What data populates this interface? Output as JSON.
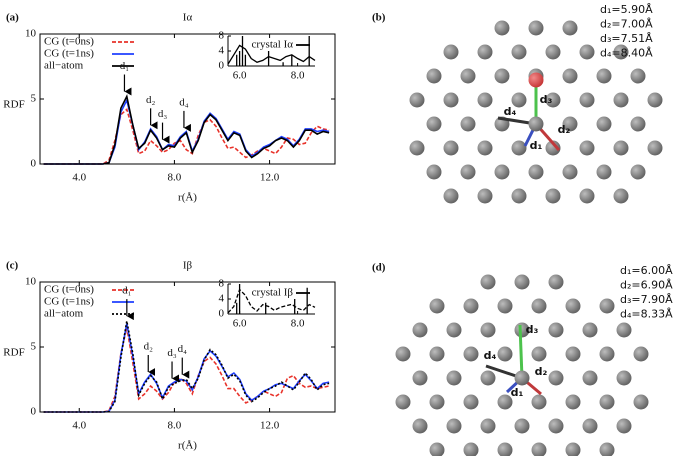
{
  "chart_data": [
    {
      "type": "line",
      "panel": "(a)",
      "title": "Iα",
      "xlabel": "r(Å)",
      "ylabel": "RDF",
      "xlim": [
        2.35,
        14.75
      ],
      "ylim": [
        0,
        10
      ],
      "xticks": [
        {
          "value": 4,
          "label": "4.0"
        },
        {
          "value": 8,
          "label": "8.0"
        },
        {
          "value": 12,
          "label": "12.0"
        }
      ],
      "yticks": [
        0,
        5,
        10
      ],
      "x": [
        2.5,
        2.75,
        3,
        3.25,
        3.5,
        3.75,
        4,
        4.25,
        4.5,
        4.75,
        5,
        5.25,
        5.5,
        5.75,
        6,
        6.25,
        6.5,
        6.75,
        7,
        7.25,
        7.5,
        7.75,
        8,
        8.25,
        8.5,
        8.75,
        9,
        9.25,
        9.5,
        9.75,
        10,
        10.25,
        10.5,
        10.75,
        11,
        11.25,
        11.5,
        11.75,
        12,
        12.25,
        12.5,
        12.75,
        13,
        13.25,
        13.5,
        13.75,
        14,
        14.25,
        14.5
      ],
      "series": [
        {
          "name": "CG (t=0ns)",
          "color": "#e8322a",
          "style": "dashed",
          "values": [
            0,
            0,
            0,
            0,
            0,
            0,
            0,
            0,
            0,
            0,
            0,
            0.3,
            1.8,
            3.8,
            4.2,
            2.6,
            0.8,
            1.0,
            1.8,
            1.4,
            0.9,
            1.1,
            1.6,
            1.8,
            1.1,
            0.8,
            2.2,
            3.2,
            3.4,
            2.9,
            2.0,
            1.2,
            1.3,
            0.9,
            0.5,
            0.7,
            1.0,
            1.2,
            1.0,
            0.8,
            1.3,
            2.0,
            1.9,
            1.5,
            1.6,
            2.4,
            2.9,
            2.7,
            2.6
          ]
        },
        {
          "name": "CG (t=1ns)",
          "color": "#1f3fff",
          "style": "solid",
          "values": [
            0,
            0,
            0,
            0,
            0,
            0,
            0,
            0,
            0,
            0,
            0,
            0.1,
            1.3,
            4.0,
            4.9,
            3.0,
            1.1,
            1.7,
            2.7,
            2.1,
            1.1,
            1.5,
            1.4,
            2.1,
            2.5,
            1.0,
            1.9,
            3.3,
            3.9,
            3.5,
            2.7,
            1.9,
            2.5,
            2.3,
            1.1,
            0.6,
            0.9,
            1.3,
            1.5,
            1.8,
            2.1,
            1.9,
            1.4,
            1.9,
            2.7,
            2.7,
            2.5,
            2.6,
            2.5
          ]
        },
        {
          "name": "all−atom",
          "color": "#000000",
          "style": "solid",
          "values": [
            0,
            0,
            0,
            0,
            0,
            0,
            0,
            0,
            0,
            0,
            0,
            0.1,
            1.5,
            4.3,
            5.2,
            3.0,
            1.2,
            1.6,
            2.6,
            2.0,
            1.1,
            1.4,
            1.3,
            2.0,
            2.4,
            0.9,
            1.8,
            3.2,
            3.8,
            3.4,
            2.6,
            1.8,
            2.4,
            2.2,
            1.0,
            0.5,
            0.8,
            1.2,
            1.4,
            1.8,
            2.0,
            1.8,
            1.3,
            1.8,
            2.6,
            2.6,
            2.3,
            2.5,
            2.4
          ]
        }
      ],
      "annotations": [
        {
          "text": "d₁",
          "x": 5.9,
          "y": 5.5
        },
        {
          "text": "d₂",
          "x": 7.0,
          "y": 2.9
        },
        {
          "text": "d₃",
          "x": 7.5,
          "y": 1.8
        },
        {
          "text": "d₄",
          "x": 8.4,
          "y": 2.7
        }
      ],
      "inset": {
        "xlim": [
          5.6,
          8.6
        ],
        "ylim": [
          0,
          8
        ],
        "xticks": [
          {
            "value": 6,
            "label": "6.0"
          },
          {
            "value": 8,
            "label": "8.0"
          }
        ],
        "yticks": [
          0,
          4,
          8
        ],
        "series": [
          {
            "name": "crystal Iα",
            "type": "stick",
            "color": "#000000",
            "x": [
              5.9,
              6.0,
              6.1,
              6.2,
              7.0,
              7.5,
              7.8,
              8.4
            ],
            "values": [
              3,
              4,
              8,
              3,
              4,
              1,
              3,
              8
            ]
          },
          {
            "color": "#000000",
            "style": "solid",
            "x": [
              5.6,
              5.8,
              6.0,
              6.2,
              6.4,
              6.6,
              6.8,
              7.0,
              7.2,
              7.4,
              7.6,
              7.8,
              8.0,
              8.2,
              8.4,
              8.6
            ],
            "values": [
              0.5,
              3,
              5.5,
              4.5,
              2,
              1,
              1.5,
              2.5,
              2,
              1.5,
              2.5,
              3,
              2,
              1.2,
              2.5,
              1.5
            ]
          }
        ]
      }
    },
    {
      "type": "line",
      "panel": "(c)",
      "title": "Iβ",
      "xlabel": "r(Å)",
      "ylabel": "RDF",
      "xlim": [
        2.35,
        14.75
      ],
      "ylim": [
        0,
        10
      ],
      "xticks": [
        {
          "value": 4,
          "label": "4.0"
        },
        {
          "value": 8,
          "label": "8.0"
        },
        {
          "value": 12,
          "label": "12.0"
        }
      ],
      "yticks": [
        0,
        5,
        10
      ],
      "x": [
        2.5,
        2.75,
        3,
        3.25,
        3.5,
        3.75,
        4,
        4.25,
        4.5,
        4.75,
        5,
        5.25,
        5.5,
        5.75,
        6,
        6.25,
        6.5,
        6.75,
        7,
        7.25,
        7.5,
        7.75,
        8,
        8.25,
        8.5,
        8.75,
        9,
        9.25,
        9.5,
        9.75,
        10,
        10.25,
        10.5,
        10.75,
        11,
        11.25,
        11.5,
        11.75,
        12,
        12.25,
        12.5,
        12.75,
        13,
        13.25,
        13.5,
        13.75,
        14,
        14.25,
        14.5
      ],
      "series": [
        {
          "name": "CG (t=0ns)",
          "color": "#e8322a",
          "style": "dashed",
          "values": [
            0,
            0,
            0,
            0,
            0,
            0,
            0,
            0,
            0,
            0,
            0,
            0.1,
            1.2,
            4.5,
            6.5,
            3.8,
            1.0,
            1.4,
            2.0,
            1.6,
            1.0,
            1.5,
            2.3,
            2.6,
            2.2,
            1.4,
            2.8,
            3.9,
            4.2,
            3.7,
            2.8,
            1.8,
            1.8,
            1.2,
            0.7,
            0.9,
            1.2,
            1.6,
            1.4,
            1.2,
            1.5,
            2.6,
            2.8,
            2.2,
            1.9,
            2.0,
            1.8,
            1.9,
            2.0
          ]
        },
        {
          "name": "CG (t=1ns)",
          "color": "#1f3fff",
          "style": "solid",
          "values": [
            0,
            0,
            0,
            0,
            0,
            0,
            0,
            0,
            0,
            0,
            0,
            0.05,
            0.9,
            4.4,
            6.8,
            4.3,
            1.4,
            2.3,
            2.9,
            2.2,
            1.1,
            2.0,
            2.3,
            2.5,
            2.4,
            1.7,
            2.7,
            4.1,
            4.7,
            4.3,
            3.5,
            2.7,
            3.0,
            2.5,
            1.4,
            0.9,
            1.2,
            1.6,
            1.8,
            2.1,
            2.2,
            2.0,
            1.8,
            2.4,
            2.9,
            2.4,
            1.8,
            2.2,
            2.3
          ]
        },
        {
          "name": "all−atom",
          "color": "#000000",
          "style": "dotted",
          "values": [
            0,
            0,
            0,
            0,
            0,
            0,
            0,
            0,
            0,
            0,
            0,
            0.05,
            0.8,
            4.2,
            7.0,
            4.5,
            1.3,
            2.2,
            2.8,
            2.3,
            1.0,
            1.9,
            2.2,
            2.4,
            2.5,
            1.8,
            2.6,
            4.0,
            4.8,
            4.4,
            3.6,
            2.6,
            2.9,
            2.4,
            1.3,
            0.8,
            1.1,
            1.5,
            1.8,
            2.0,
            2.3,
            2.0,
            1.7,
            2.3,
            3.0,
            2.5,
            1.7,
            2.1,
            2.2
          ]
        }
      ],
      "annotations": [
        {
          "text": "d₁",
          "x": 6.0,
          "y": 7.3
        },
        {
          "text": "d₂",
          "x": 6.9,
          "y": 3.0
        },
        {
          "text": "d₃",
          "x": 7.9,
          "y": 2.5
        },
        {
          "text": "d₄",
          "x": 8.33,
          "y": 2.8
        }
      ],
      "inset": {
        "xlim": [
          5.6,
          8.6
        ],
        "ylim": [
          0,
          8
        ],
        "xticks": [
          {
            "value": 6,
            "label": "6.0"
          },
          {
            "value": 8,
            "label": "8.0"
          }
        ],
        "yticks": [
          0,
          4,
          8
        ],
        "series": [
          {
            "name": "crystal Iβ",
            "type": "stick",
            "color": "#000000",
            "x": [
              5.9,
              6.0,
              6.9,
              7.9,
              8.33
            ],
            "values": [
              3,
              8,
              3,
              4,
              7
            ]
          },
          {
            "color": "#000000",
            "style": "dashed",
            "x": [
              5.6,
              5.8,
              6.0,
              6.2,
              6.4,
              6.6,
              6.8,
              7.0,
              7.2,
              7.4,
              7.6,
              7.8,
              8.0,
              8.2,
              8.4,
              8.6
            ],
            "values": [
              0.3,
              2,
              6.5,
              5,
              2,
              0.8,
              2.5,
              2,
              1,
              1.8,
              2.2,
              2.6,
              1.5,
              1,
              2.5,
              1.8
            ]
          }
        ]
      }
    }
  ],
  "diagrams": [
    {
      "panel": "(b)",
      "distances": [
        "d₁=5.90Å",
        "d₂=7.00Å",
        "d₃=7.51Å",
        "d₄=8.40Å"
      ],
      "bond_labels": [
        "d₁",
        "d₂",
        "d₃",
        "d₄"
      ]
    },
    {
      "panel": "(d)",
      "distances": [
        "d₁=6.00Å",
        "d₂=6.90Å",
        "d₃=7.90Å",
        "d₄=8.33Å"
      ],
      "bond_labels": [
        "d₁",
        "d₂",
        "d₃",
        "d₄"
      ]
    }
  ]
}
